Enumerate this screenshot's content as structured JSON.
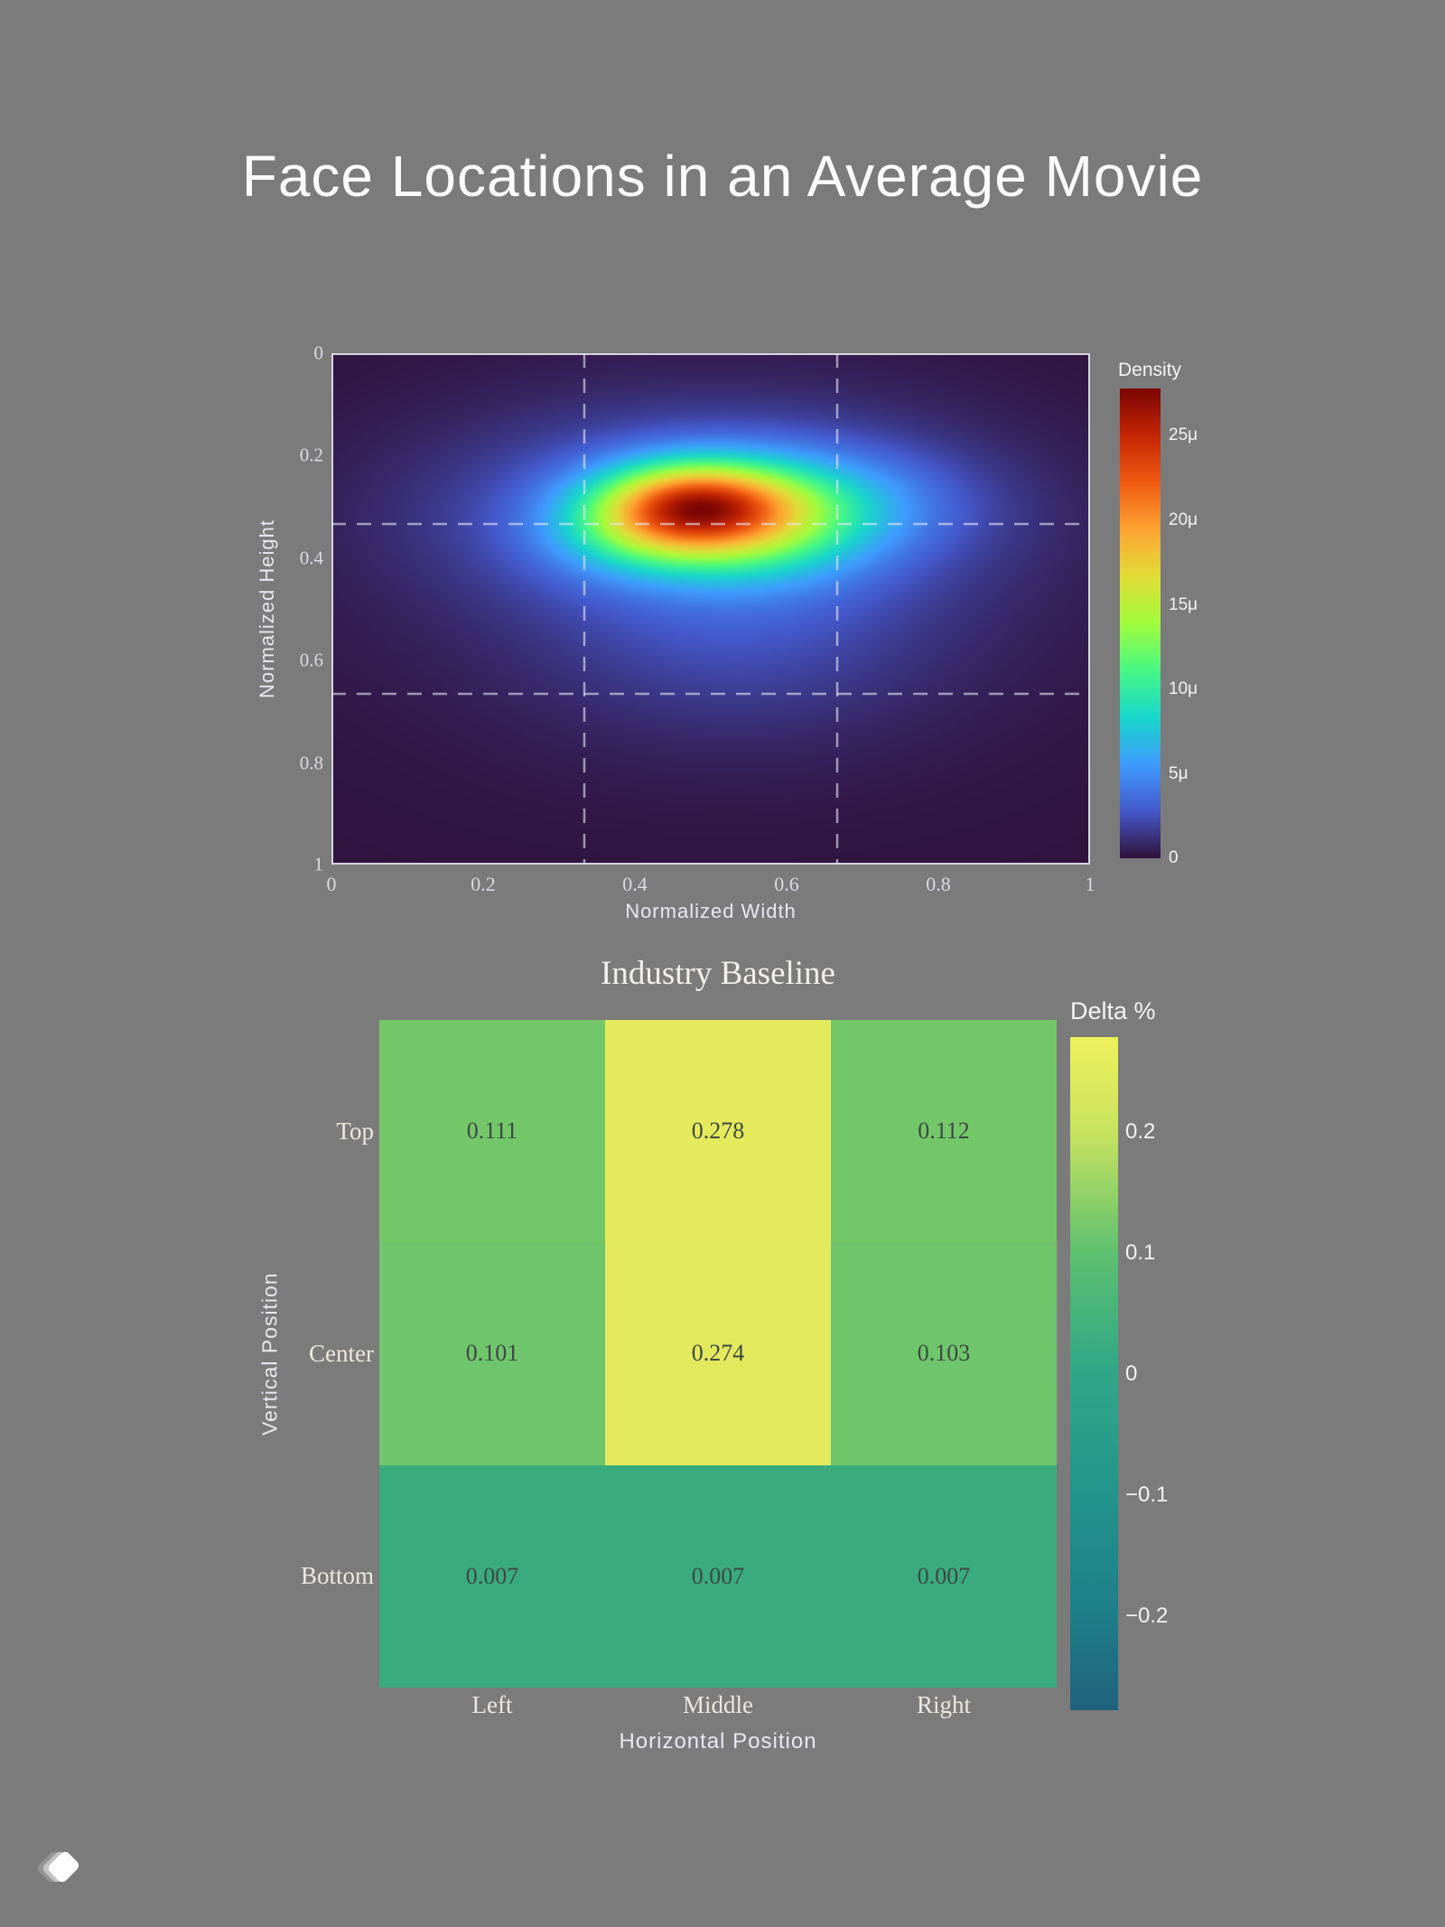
{
  "page": {
    "background": "#7b7b7b",
    "title": "Face Locations in an Average Movie",
    "logo": "layered-diamond-logo"
  },
  "chart_data": [
    {
      "type": "heatmap",
      "subtype": "2d-kde-density",
      "xlabel": "Normalized Width",
      "ylabel": "Normalized Height",
      "xlim": [
        0,
        1
      ],
      "ylim_top_to_bottom": [
        0,
        1
      ],
      "x_ticks": [
        0,
        0.2,
        0.4,
        0.6,
        0.8,
        1
      ],
      "y_ticks": [
        0,
        0.2,
        0.4,
        0.6,
        0.8,
        1
      ],
      "x_tick_labels": [
        "0",
        "0.2",
        "0.4",
        "0.6",
        "0.8",
        "1"
      ],
      "y_tick_labels": [
        "0",
        "0.2",
        "0.4",
        "0.6",
        "0.8",
        "1"
      ],
      "grid": {
        "style": "dashed",
        "x_lines": [
          0.333,
          0.667
        ],
        "y_lines": [
          0.333,
          0.667
        ],
        "color": "rgba(230,232,245,0.6)"
      },
      "colorbar": {
        "title": "Density",
        "unit": "μ",
        "ticks": [
          25,
          20,
          15,
          10,
          5,
          0
        ],
        "tick_labels": [
          "25μ",
          "20μ",
          "15μ",
          "10μ",
          "5μ",
          "0"
        ],
        "max_value_mu": 27.8,
        "min_value_mu": 0
      },
      "colormap": "turbo",
      "colormap_stops": [
        {
          "t": 0.0,
          "c": "#30123b"
        },
        {
          "t": 0.1,
          "c": "#4458cb"
        },
        {
          "t": 0.2,
          "c": "#3e9bfe"
        },
        {
          "t": 0.3,
          "c": "#18d6cb"
        },
        {
          "t": 0.4,
          "c": "#46f884"
        },
        {
          "t": 0.5,
          "c": "#a2fc3c"
        },
        {
          "t": 0.6,
          "c": "#e1dd37"
        },
        {
          "t": 0.7,
          "c": "#fea331"
        },
        {
          "t": 0.8,
          "c": "#ef5a11"
        },
        {
          "t": 0.9,
          "c": "#c42503"
        },
        {
          "t": 1.0,
          "c": "#7a0403"
        }
      ],
      "density_peak": {
        "x": 0.48,
        "y": 0.3
      },
      "gaussians": [
        {
          "cx": 0.475,
          "cy": 0.285,
          "sx": 0.085,
          "sy": 0.055,
          "a": 1.0
        },
        {
          "cx": 0.54,
          "cy": 0.345,
          "sx": 0.1,
          "sy": 0.068,
          "a": 0.55
        },
        {
          "cx": 0.41,
          "cy": 0.345,
          "sx": 0.085,
          "sy": 0.058,
          "a": 0.45
        },
        {
          "cx": 0.6,
          "cy": 0.29,
          "sx": 0.13,
          "sy": 0.07,
          "a": 0.4
        },
        {
          "cx": 0.5,
          "cy": 0.31,
          "sx": 0.23,
          "sy": 0.13,
          "a": 0.3
        },
        {
          "cx": 0.54,
          "cy": 0.55,
          "sx": 0.18,
          "sy": 0.14,
          "a": 0.12
        },
        {
          "cx": 0.5,
          "cy": 0.42,
          "sx": 0.38,
          "sy": 0.3,
          "a": 0.06
        }
      ]
    },
    {
      "type": "heatmap",
      "title": "Industry Baseline",
      "xlabel": "Horizontal Position",
      "ylabel": "Vertical Position",
      "col_labels": [
        "Left",
        "Middle",
        "Right"
      ],
      "row_labels": [
        "Top",
        "Center",
        "Bottom"
      ],
      "values": [
        [
          0.111,
          0.278,
          0.112
        ],
        [
          0.101,
          0.274,
          0.103
        ],
        [
          0.007,
          0.007,
          0.007
        ]
      ],
      "cell_colors": [
        [
          "#73c769",
          "#e5ea5c",
          "#73c769"
        ],
        [
          "#6fc56c",
          "#e3e95d",
          "#6fc56c"
        ],
        [
          "#3aab7d",
          "#3aab7d",
          "#3aab7d"
        ]
      ],
      "colorbar": {
        "title": "Delta %",
        "ticks": [
          0.2,
          0.1,
          0,
          -0.1,
          -0.2
        ],
        "tick_labels": [
          "0.2",
          "0.1",
          "0",
          "−0.1",
          "−0.2"
        ],
        "max_value": 0.278,
        "min_value": -0.278,
        "gradient_stops": [
          {
            "t": 0.0,
            "c": "#20627c"
          },
          {
            "t": 0.14,
            "c": "#1e7e88"
          },
          {
            "t": 0.32,
            "c": "#23958c"
          },
          {
            "t": 0.5,
            "c": "#2ea787"
          },
          {
            "t": 0.68,
            "c": "#5ec06f"
          },
          {
            "t": 0.86,
            "c": "#c8e35f"
          },
          {
            "t": 1.0,
            "c": "#eef15b"
          }
        ]
      }
    }
  ]
}
